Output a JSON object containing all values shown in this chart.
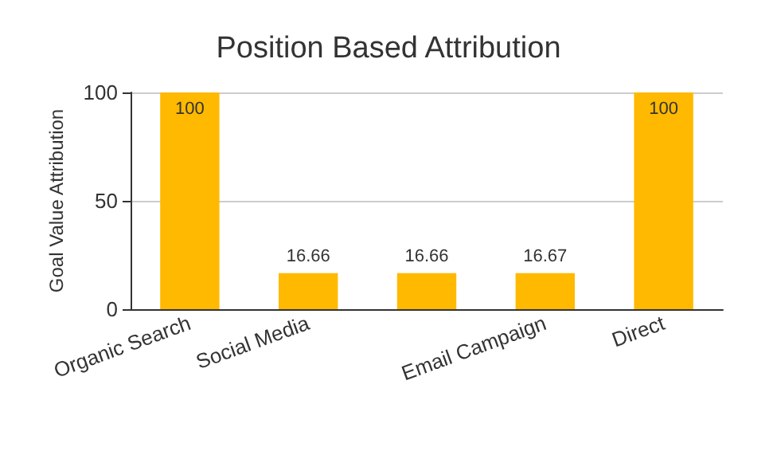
{
  "chart_data": {
    "type": "bar",
    "title": "Position Based Attribution",
    "ylabel": "Goal Value Attribution",
    "categories": [
      "Organic Search",
      "Social Media",
      null,
      "Email Campaign",
      "Direct"
    ],
    "values": [
      100,
      16.66,
      16.66,
      16.67,
      100
    ],
    "color": "#ffb900",
    "ylim": [
      0,
      100
    ],
    "yticks": [
      0,
      50,
      100
    ],
    "grid": "y",
    "data_labels": true
  }
}
